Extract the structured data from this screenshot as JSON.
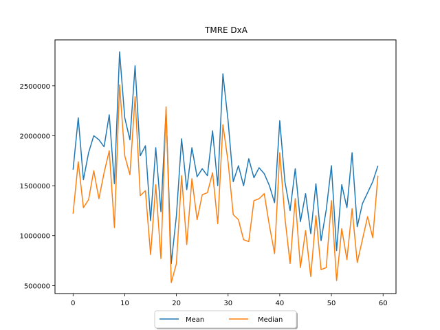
{
  "chart_data": {
    "type": "line",
    "title": "TMRE DxA",
    "xlabel": "",
    "ylabel": "",
    "xlim": [
      -3.5,
      62.5
    ],
    "ylim": [
      420000,
      2960000
    ],
    "xticks": [
      0,
      10,
      20,
      30,
      40,
      50,
      60
    ],
    "yticks": [
      500000,
      1000000,
      1500000,
      2000000,
      2500000
    ],
    "grid": false,
    "legend_position": "bottom-center",
    "x": [
      0,
      1,
      2,
      3,
      4,
      5,
      6,
      7,
      8,
      9,
      10,
      11,
      12,
      13,
      14,
      15,
      16,
      17,
      18,
      19,
      20,
      21,
      22,
      23,
      24,
      25,
      26,
      27,
      28,
      29,
      30,
      31,
      32,
      33,
      34,
      35,
      36,
      37,
      38,
      39,
      40,
      41,
      42,
      43,
      44,
      45,
      46,
      47,
      48,
      49,
      50,
      51,
      52,
      53,
      54,
      55,
      56,
      57,
      58,
      59
    ],
    "series": [
      {
        "name": "Mean",
        "color": "#1f77b4",
        "values": [
          1660000,
          2180000,
          1560000,
          1830000,
          2000000,
          1960000,
          1890000,
          2210000,
          1520000,
          2840000,
          2180000,
          1960000,
          2700000,
          1800000,
          1900000,
          1150000,
          1880000,
          1240000,
          2260000,
          720000,
          1200000,
          1970000,
          1460000,
          1880000,
          1590000,
          1670000,
          1600000,
          2050000,
          1500000,
          2620000,
          2150000,
          1540000,
          1700000,
          1500000,
          1770000,
          1580000,
          1680000,
          1620000,
          1500000,
          1330000,
          2150000,
          1540000,
          1250000,
          1670000,
          1140000,
          1420000,
          1020000,
          1520000,
          950000,
          1260000,
          1700000,
          850000,
          1510000,
          1280000,
          1830000,
          1090000,
          1320000,
          1430000,
          1540000,
          1700000
        ]
      },
      {
        "name": "Median",
        "color": "#ff7f0e",
        "values": [
          1220000,
          1740000,
          1280000,
          1360000,
          1650000,
          1370000,
          1630000,
          1850000,
          1080000,
          2510000,
          1800000,
          1610000,
          2390000,
          1400000,
          1450000,
          810000,
          1510000,
          770000,
          2290000,
          530000,
          720000,
          1600000,
          910000,
          1570000,
          1160000,
          1410000,
          1430000,
          1630000,
          1120000,
          2110000,
          1740000,
          1210000,
          1160000,
          960000,
          940000,
          1350000,
          1370000,
          1420000,
          1100000,
          820000,
          1830000,
          1180000,
          720000,
          1370000,
          680000,
          1050000,
          590000,
          1200000,
          660000,
          680000,
          1350000,
          550000,
          1070000,
          760000,
          1270000,
          730000,
          960000,
          1190000,
          980000,
          1600000
        ]
      }
    ]
  }
}
